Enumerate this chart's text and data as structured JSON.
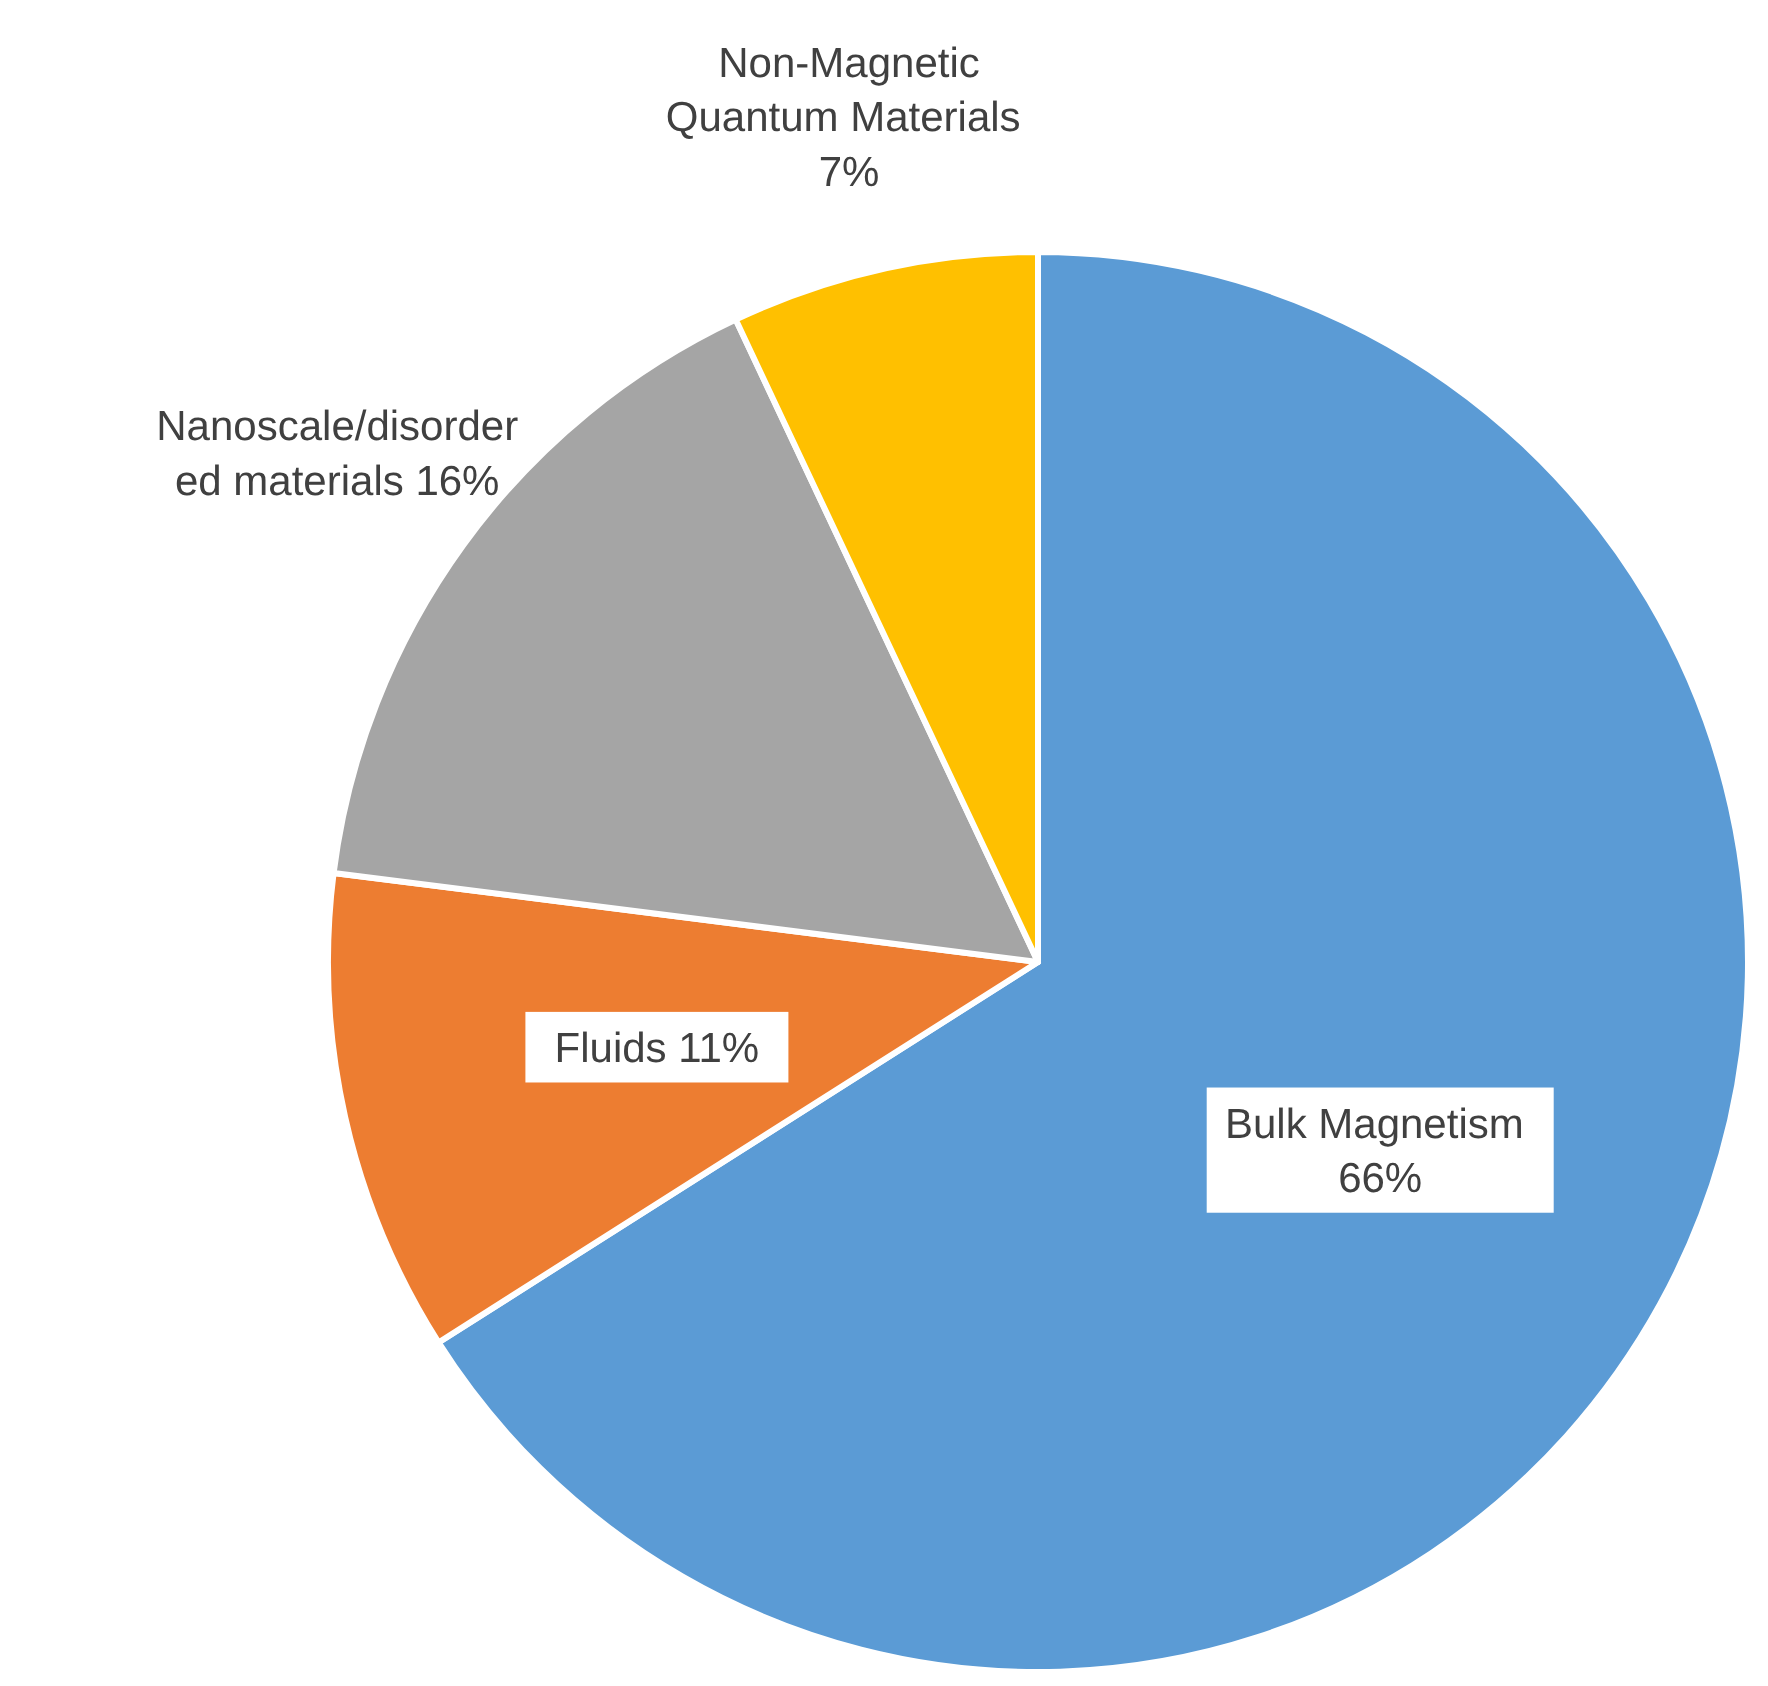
{
  "chart_data": {
    "type": "pie",
    "categories": [
      "Bulk Magnetism",
      "Fluids",
      "Nanoscale/disordered materials",
      "Non-Magnetic Quantum Materials"
    ],
    "values": [
      66,
      11,
      16,
      7
    ],
    "value_labels": [
      "66%",
      "11%",
      "16%",
      "7%"
    ],
    "colors": [
      "#5b9bd5",
      "#ed7d31",
      "#a5a5a5",
      "#ffc000"
    ],
    "legend": false
  }
}
